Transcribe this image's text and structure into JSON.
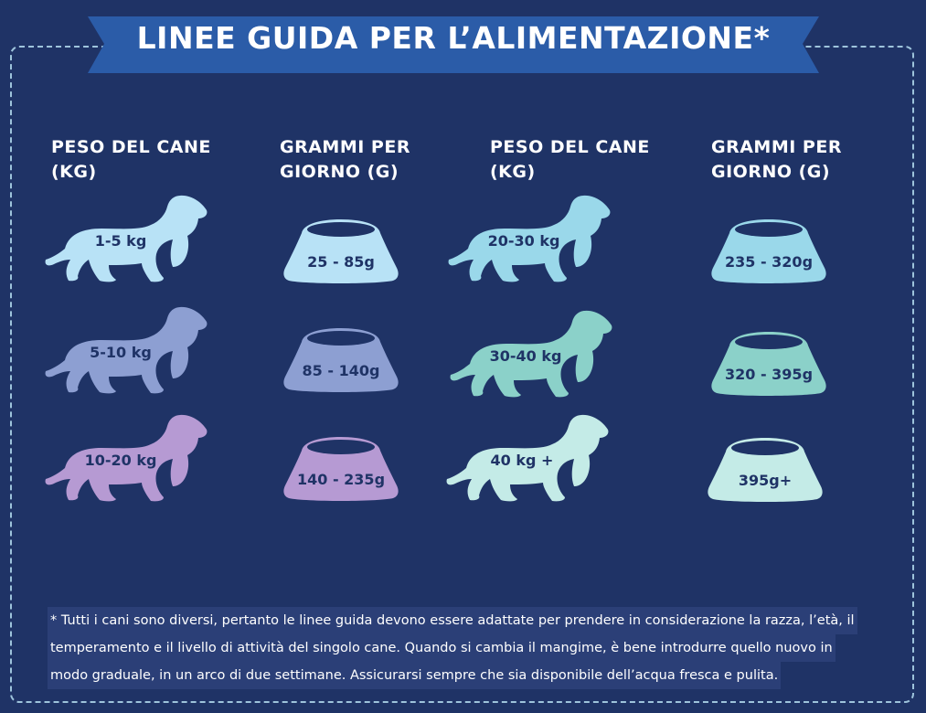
{
  "title": "LINEE GUIDA PER L’ALIMENTAZIONE*",
  "headers": {
    "weight_line1": "PESO DEL CANE",
    "weight_line2": "(KG)",
    "grams_line1": "GRAMMI PER",
    "grams_line2": "GIORNO (G)"
  },
  "rows": [
    {
      "weight": "1-5 kg",
      "grams": "25 - 85g"
    },
    {
      "weight": "5-10 kg",
      "grams": "85 - 140g"
    },
    {
      "weight": "10-20 kg",
      "grams": "140 - 235g"
    },
    {
      "weight": "20-30 kg",
      "grams": "235 - 320g"
    },
    {
      "weight": "30-40 kg",
      "grams": "320 - 395g"
    },
    {
      "weight": "40 kg +",
      "grams": "395g+"
    }
  ],
  "colors": {
    "background": "#1f3366",
    "banner": "#2b5ca8",
    "row_colors": [
      "#b8e2f6",
      "#8d9fd2",
      "#b69ad3",
      "#9ad8ea",
      "#8bd1c9",
      "#c4ebe7"
    ]
  },
  "icons": {
    "dog": "basset-hound-icon",
    "bowl": "dog-bowl-icon"
  },
  "footnote": {
    "line1": "* Tutti i cani sono diversi, pertanto le linee guida devono essere adattate per prendere in considerazione la razza, l’età, il",
    "line2": "temperamento e il livello di attività del singolo cane. Quando si cambia il mangime, è bene introdurre quello nuovo in",
    "line3": "modo graduale, in un arco di due settimane. Assicurarsi sempre che sia disponibile dell’acqua fresca e pulita."
  }
}
